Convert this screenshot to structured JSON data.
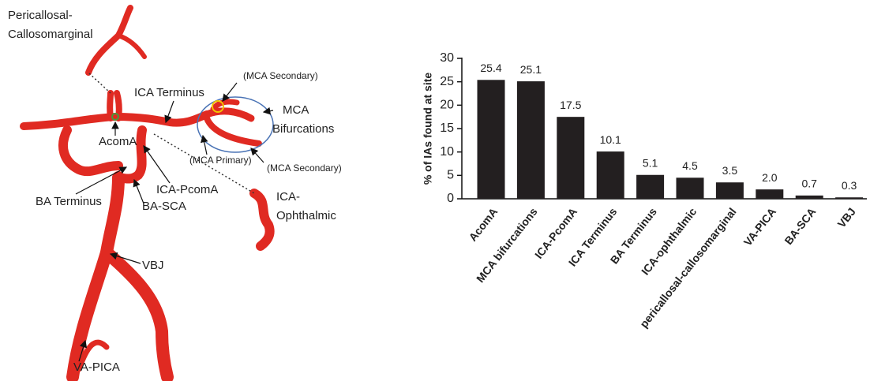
{
  "illustration": {
    "labels": [
      [
        "Pericallosal-",
        "Callosomarginal"
      ],
      [
        "ICA  Terminus"
      ],
      [
        "(MCA Secondary)"
      ],
      [
        "MCA",
        "Bifurcations"
      ],
      [
        "AcomA"
      ],
      [
        "(MCA Primary)"
      ],
      [
        "(MCA Secondary)"
      ],
      [
        "BA Terminus"
      ],
      [
        "ICA-PcomA"
      ],
      [
        "BA-SCA"
      ],
      [
        "ICA-",
        "Ophthalmic"
      ],
      [
        "VBJ"
      ],
      [
        "VA-PICA"
      ]
    ]
  },
  "chart_data": {
    "type": "bar",
    "ylabel": "% of IAs found at site",
    "categories": [
      "AcomA",
      "MCA bifurcations",
      "ICA-PcomA",
      "ICA Terminus",
      "BA Terminus",
      "ICA-ophthalmic",
      "pericallosal-callosomarginal",
      "VA-PICA",
      "BA-SCA",
      "VBJ"
    ],
    "values": [
      25.4,
      25.1,
      17.5,
      10.1,
      5.1,
      4.5,
      3.5,
      2.0,
      0.7,
      0.3
    ],
    "value_labels": [
      "25.4",
      "25.1",
      "17.5",
      "10.1",
      "5.1",
      "4.5",
      "3.5",
      "2.0",
      "0.7",
      "0.3"
    ],
    "color": "#231f20",
    "ylim": [
      0,
      30
    ],
    "yticks": [
      0,
      5,
      10,
      15,
      20,
      25,
      30
    ]
  }
}
